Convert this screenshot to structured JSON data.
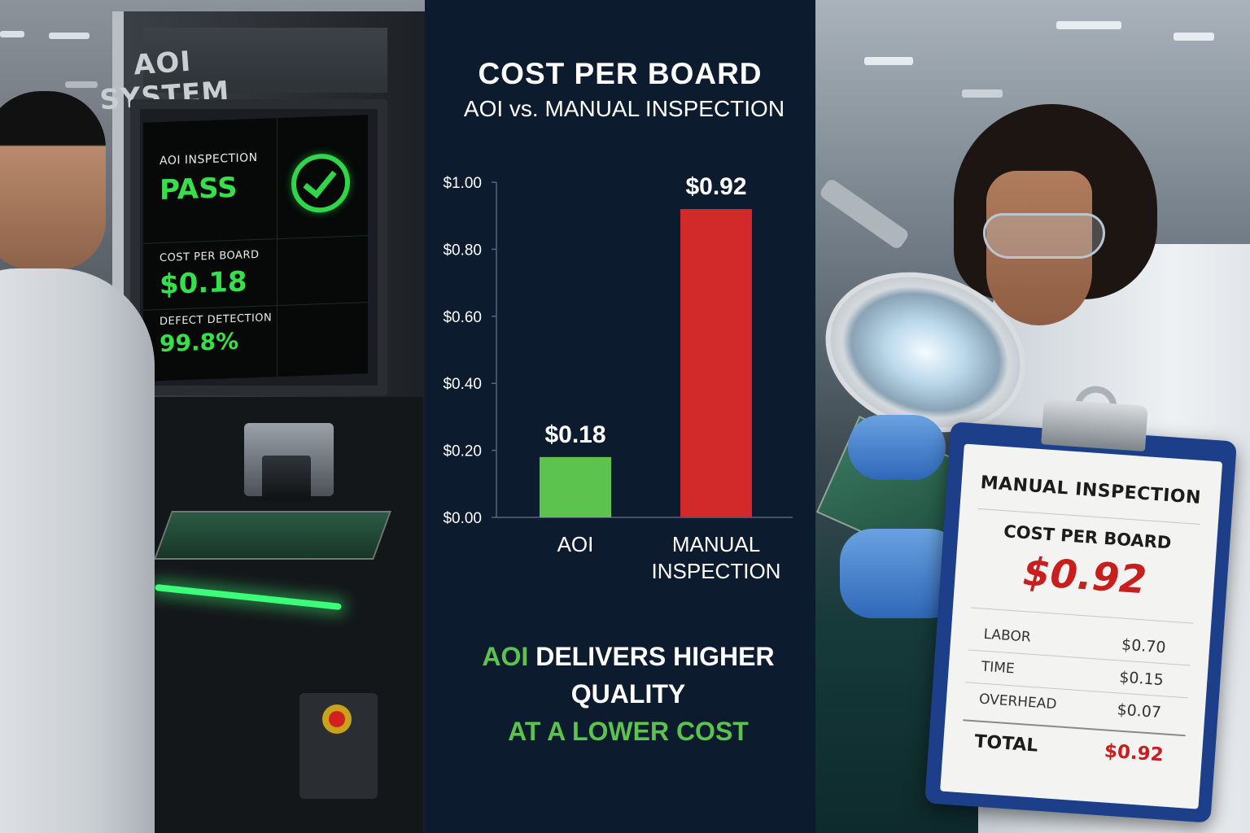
{
  "aoi_machine": {
    "label": "AOI SYSTEM",
    "screen": {
      "inspection_label": "AOI INSPECTION",
      "status": "PASS",
      "cost_label": "COST PER BOARD",
      "cost_value": "$0.18",
      "detection_label": "DEFECT DETECTION",
      "detection_value": "99.8%"
    }
  },
  "chart": {
    "title": "COST PER BOARD",
    "subtitle": "AOI vs. MANUAL INSPECTION",
    "tagline": {
      "highlight": "AOI",
      "line1_rest": " DELIVERS HIGHER QUALITY",
      "line2": "AT A LOWER COST"
    }
  },
  "chart_data": {
    "type": "bar",
    "title": "COST PER BOARD",
    "subtitle": "AOI vs. MANUAL INSPECTION",
    "categories": [
      "AOI",
      "MANUAL INSPECTION"
    ],
    "category_lines": [
      [
        "AOI"
      ],
      [
        "MANUAL",
        "INSPECTION"
      ]
    ],
    "values": [
      0.18,
      0.92
    ],
    "value_labels": [
      "$0.18",
      "$0.92"
    ],
    "bar_colors": [
      "#5bc34e",
      "#d22a2a"
    ],
    "ylim": [
      0,
      1.0
    ],
    "yticks": [
      0.0,
      0.2,
      0.4,
      0.6,
      0.8,
      1.0
    ],
    "ytick_labels": [
      "$0.00",
      "$0.20",
      "$0.40",
      "$0.60",
      "$0.80",
      "$1.00"
    ],
    "grid": false,
    "legend": "none"
  },
  "clipboard": {
    "title": "MANUAL INSPECTION",
    "subtitle": "COST PER BOARD",
    "amount": "$0.92",
    "rows": [
      {
        "label": "LABOR",
        "value": "$0.70"
      },
      {
        "label": "TIME",
        "value": "$0.15"
      },
      {
        "label": "OVERHEAD",
        "value": "$0.07"
      }
    ],
    "total_label": "TOTAL",
    "total_value": "$0.92"
  },
  "colors": {
    "panel_bg": "#0d1b2e",
    "accent_green": "#5bc34e",
    "accent_red": "#d22a2a",
    "screen_green": "#35e04a"
  }
}
